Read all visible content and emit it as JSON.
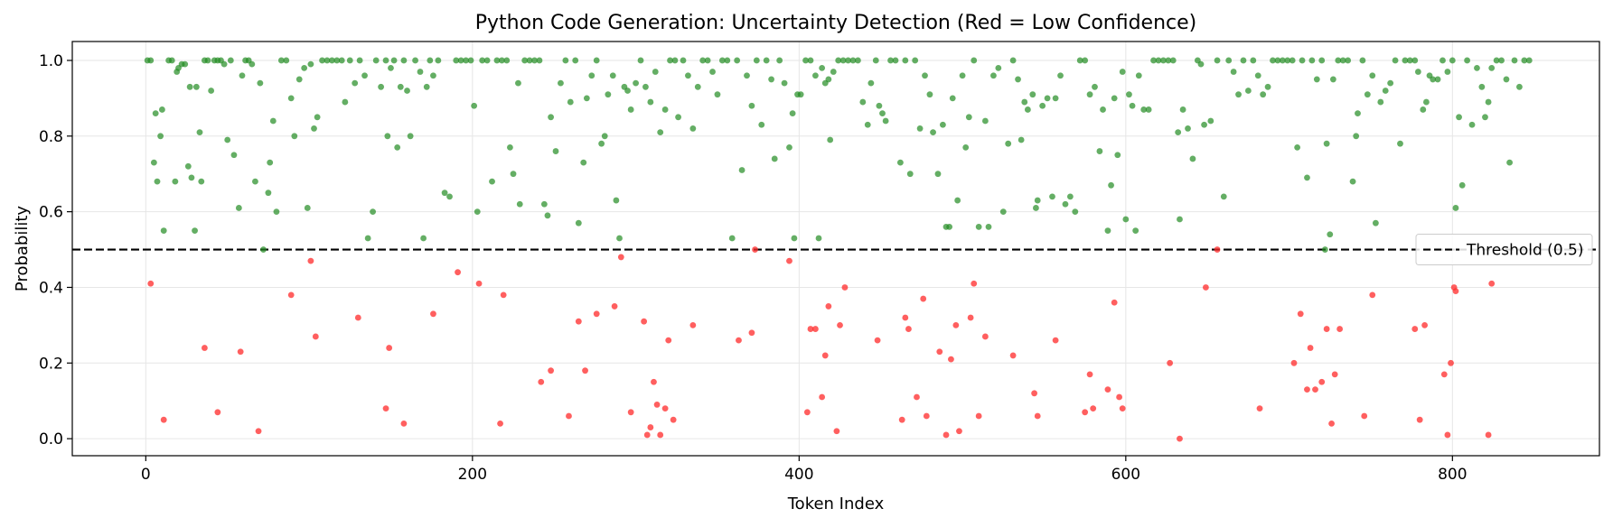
{
  "chart_data": {
    "type": "scatter",
    "title": "Python Code Generation: Uncertainty Detection (Red = Low Confidence)",
    "xlabel": "Token Index",
    "ylabel": "Probability",
    "xlim": [
      -45,
      890
    ],
    "ylim": [
      -0.045,
      1.05
    ],
    "xticks": [
      0,
      200,
      400,
      600,
      800
    ],
    "yticks": [
      0.0,
      0.2,
      0.4,
      0.6,
      0.8,
      1.0
    ],
    "xtick_labels": [
      "0",
      "200",
      "400",
      "600",
      "800"
    ],
    "ytick_labels": [
      "0.0",
      "0.2",
      "0.4",
      "0.6",
      "0.8",
      "1.0"
    ],
    "grid": true,
    "threshold": 0.5,
    "legend": {
      "placement": "right",
      "entries": [
        "Threshold (0.5)"
      ]
    },
    "colors": {
      "high": "#228B22",
      "low": "#FF2A2A",
      "threshold": "#000000"
    },
    "high_confidence_points": [
      [
        1,
        1.0
      ],
      [
        3,
        1.0
      ],
      [
        5,
        0.73
      ],
      [
        6,
        0.86
      ],
      [
        7,
        0.68
      ],
      [
        9,
        0.8
      ],
      [
        10,
        0.87
      ],
      [
        11,
        0.55
      ],
      [
        14,
        1.0
      ],
      [
        16,
        1.0
      ],
      [
        18,
        0.68
      ],
      [
        19,
        0.97
      ],
      [
        20,
        0.98
      ],
      [
        22,
        0.99
      ],
      [
        24,
        0.99
      ],
      [
        26,
        0.72
      ],
      [
        27,
        0.93
      ],
      [
        28,
        0.69
      ],
      [
        30,
        0.55
      ],
      [
        31,
        0.93
      ],
      [
        33,
        0.81
      ],
      [
        34,
        0.68
      ],
      [
        36,
        1.0
      ],
      [
        38,
        1.0
      ],
      [
        40,
        0.92
      ],
      [
        42,
        1.0
      ],
      [
        44,
        1.0
      ],
      [
        46,
        1.0
      ],
      [
        48,
        0.99
      ],
      [
        50,
        0.79
      ],
      [
        52,
        1.0
      ],
      [
        54,
        0.75
      ],
      [
        57,
        0.61
      ],
      [
        59,
        0.96
      ],
      [
        61,
        1.0
      ],
      [
        63,
        1.0
      ],
      [
        65,
        0.99
      ],
      [
        67,
        0.68
      ],
      [
        70,
        0.94
      ],
      [
        72,
        0.5
      ],
      [
        75,
        0.65
      ],
      [
        76,
        0.73
      ],
      [
        78,
        0.84
      ],
      [
        80,
        0.6
      ],
      [
        83,
        1.0
      ],
      [
        86,
        1.0
      ],
      [
        89,
        0.9
      ],
      [
        91,
        0.8
      ],
      [
        94,
        0.95
      ],
      [
        97,
        0.98
      ],
      [
        99,
        0.61
      ],
      [
        101,
        0.99
      ],
      [
        103,
        0.82
      ],
      [
        105,
        0.85
      ],
      [
        108,
        1.0
      ],
      [
        111,
        1.0
      ],
      [
        114,
        1.0
      ],
      [
        117,
        1.0
      ],
      [
        120,
        1.0
      ],
      [
        122,
        0.89
      ],
      [
        125,
        1.0
      ],
      [
        128,
        0.94
      ],
      [
        131,
        1.0
      ],
      [
        134,
        0.96
      ],
      [
        136,
        0.53
      ],
      [
        139,
        0.6
      ],
      [
        141,
        1.0
      ],
      [
        144,
        0.93
      ],
      [
        147,
        1.0
      ],
      [
        148,
        0.8
      ],
      [
        150,
        0.98
      ],
      [
        152,
        1.0
      ],
      [
        154,
        0.77
      ],
      [
        156,
        0.93
      ],
      [
        158,
        1.0
      ],
      [
        160,
        0.92
      ],
      [
        162,
        0.8
      ],
      [
        165,
        1.0
      ],
      [
        168,
        0.97
      ],
      [
        170,
        0.53
      ],
      [
        172,
        0.93
      ],
      [
        174,
        1.0
      ],
      [
        176,
        0.96
      ],
      [
        179,
        1.0
      ],
      [
        183,
        0.65
      ],
      [
        186,
        0.64
      ],
      [
        190,
        1.0
      ],
      [
        193,
        1.0
      ],
      [
        196,
        1.0
      ],
      [
        199,
        1.0
      ],
      [
        201,
        0.88
      ],
      [
        203,
        0.6
      ],
      [
        206,
        1.0
      ],
      [
        209,
        1.0
      ],
      [
        212,
        0.68
      ],
      [
        215,
        1.0
      ],
      [
        218,
        1.0
      ],
      [
        221,
        1.0
      ],
      [
        223,
        0.77
      ],
      [
        225,
        0.7
      ],
      [
        228,
        0.94
      ],
      [
        229,
        0.62
      ],
      [
        232,
        1.0
      ],
      [
        235,
        1.0
      ],
      [
        238,
        1.0
      ],
      [
        241,
        1.0
      ],
      [
        244,
        0.62
      ],
      [
        246,
        0.59
      ],
      [
        248,
        0.85
      ],
      [
        251,
        0.76
      ],
      [
        254,
        0.94
      ],
      [
        257,
        1.0
      ],
      [
        260,
        0.89
      ],
      [
        263,
        1.0
      ],
      [
        265,
        0.57
      ],
      [
        268,
        0.73
      ],
      [
        270,
        0.9
      ],
      [
        273,
        0.96
      ],
      [
        276,
        1.0
      ],
      [
        279,
        0.78
      ],
      [
        281,
        0.8
      ],
      [
        283,
        0.91
      ],
      [
        286,
        0.96
      ],
      [
        288,
        0.63
      ],
      [
        290,
        0.53
      ],
      [
        293,
        0.93
      ],
      [
        295,
        0.92
      ],
      [
        297,
        0.87
      ],
      [
        300,
        0.94
      ],
      [
        303,
        1.0
      ],
      [
        306,
        0.93
      ],
      [
        309,
        0.89
      ],
      [
        312,
        0.97
      ],
      [
        315,
        0.81
      ],
      [
        318,
        0.87
      ],
      [
        321,
        1.0
      ],
      [
        324,
        1.0
      ],
      [
        326,
        0.85
      ],
      [
        329,
        1.0
      ],
      [
        332,
        0.96
      ],
      [
        335,
        0.82
      ],
      [
        338,
        0.93
      ],
      [
        341,
        1.0
      ],
      [
        344,
        1.0
      ],
      [
        347,
        0.97
      ],
      [
        350,
        0.91
      ],
      [
        353,
        1.0
      ],
      [
        356,
        1.0
      ],
      [
        359,
        0.53
      ],
      [
        362,
        1.0
      ],
      [
        365,
        0.71
      ],
      [
        368,
        0.96
      ],
      [
        371,
        0.88
      ],
      [
        374,
        1.0
      ],
      [
        377,
        0.83
      ],
      [
        380,
        1.0
      ],
      [
        383,
        0.95
      ],
      [
        385,
        0.74
      ],
      [
        388,
        1.0
      ],
      [
        391,
        0.94
      ],
      [
        394,
        0.77
      ],
      [
        396,
        0.86
      ],
      [
        397,
        0.53
      ],
      [
        399,
        0.91
      ],
      [
        401,
        0.91
      ],
      [
        404,
        1.0
      ],
      [
        407,
        1.0
      ],
      [
        410,
        0.96
      ],
      [
        412,
        0.53
      ],
      [
        414,
        0.98
      ],
      [
        416,
        0.94
      ],
      [
        418,
        0.95
      ],
      [
        419,
        0.79
      ],
      [
        421,
        0.97
      ],
      [
        424,
        1.0
      ],
      [
        427,
        1.0
      ],
      [
        430,
        1.0
      ],
      [
        433,
        1.0
      ],
      [
        436,
        1.0
      ],
      [
        439,
        0.89
      ],
      [
        442,
        0.83
      ],
      [
        444,
        0.94
      ],
      [
        447,
        1.0
      ],
      [
        449,
        0.88
      ],
      [
        451,
        0.86
      ],
      [
        453,
        0.84
      ],
      [
        456,
        1.0
      ],
      [
        459,
        1.0
      ],
      [
        462,
        0.73
      ],
      [
        465,
        1.0
      ],
      [
        468,
        0.7
      ],
      [
        471,
        1.0
      ],
      [
        474,
        0.82
      ],
      [
        477,
        0.96
      ],
      [
        480,
        0.91
      ],
      [
        482,
        0.81
      ],
      [
        485,
        0.7
      ],
      [
        488,
        0.83
      ],
      [
        490,
        0.56
      ],
      [
        492,
        0.56
      ],
      [
        494,
        0.9
      ],
      [
        497,
        0.63
      ],
      [
        500,
        0.96
      ],
      [
        502,
        0.77
      ],
      [
        504,
        0.85
      ],
      [
        507,
        1.0
      ],
      [
        510,
        0.56
      ],
      [
        514,
        0.84
      ],
      [
        516,
        0.56
      ],
      [
        519,
        0.96
      ],
      [
        522,
        0.98
      ],
      [
        525,
        0.6
      ],
      [
        528,
        0.78
      ],
      [
        531,
        1.0
      ],
      [
        534,
        0.95
      ],
      [
        536,
        0.79
      ],
      [
        538,
        0.89
      ],
      [
        540,
        0.87
      ],
      [
        543,
        0.91
      ],
      [
        545,
        0.61
      ],
      [
        546,
        0.63
      ],
      [
        549,
        0.88
      ],
      [
        552,
        0.9
      ],
      [
        555,
        0.64
      ],
      [
        557,
        0.9
      ],
      [
        560,
        0.96
      ],
      [
        563,
        0.62
      ],
      [
        566,
        0.64
      ],
      [
        569,
        0.6
      ],
      [
        572,
        1.0
      ],
      [
        575,
        1.0
      ],
      [
        578,
        0.91
      ],
      [
        581,
        0.93
      ],
      [
        584,
        0.76
      ],
      [
        586,
        0.87
      ],
      [
        589,
        0.55
      ],
      [
        591,
        0.67
      ],
      [
        593,
        0.9
      ],
      [
        595,
        0.75
      ],
      [
        598,
        0.97
      ],
      [
        600,
        0.58
      ],
      [
        602,
        0.91
      ],
      [
        604,
        0.88
      ],
      [
        606,
        0.55
      ],
      [
        608,
        0.96
      ],
      [
        611,
        0.87
      ],
      [
        614,
        0.87
      ],
      [
        617,
        1.0
      ],
      [
        620,
        1.0
      ],
      [
        623,
        1.0
      ],
      [
        626,
        1.0
      ],
      [
        629,
        1.0
      ],
      [
        632,
        0.81
      ],
      [
        633,
        0.58
      ],
      [
        635,
        0.87
      ],
      [
        638,
        0.82
      ],
      [
        641,
        0.74
      ],
      [
        644,
        1.0
      ],
      [
        646,
        0.99
      ],
      [
        648,
        0.83
      ],
      [
        652,
        0.84
      ],
      [
        656,
        1.0
      ],
      [
        660,
        0.64
      ],
      [
        663,
        1.0
      ],
      [
        666,
        0.97
      ],
      [
        669,
        0.91
      ],
      [
        672,
        1.0
      ],
      [
        675,
        0.92
      ],
      [
        678,
        1.0
      ],
      [
        681,
        0.96
      ],
      [
        684,
        0.91
      ],
      [
        687,
        0.93
      ],
      [
        690,
        1.0
      ],
      [
        693,
        1.0
      ],
      [
        696,
        1.0
      ],
      [
        699,
        1.0
      ],
      [
        702,
        1.0
      ],
      [
        705,
        0.77
      ],
      [
        708,
        1.0
      ],
      [
        711,
        0.69
      ],
      [
        714,
        1.0
      ],
      [
        717,
        0.95
      ],
      [
        720,
        1.0
      ],
      [
        722,
        0.5
      ],
      [
        723,
        0.78
      ],
      [
        725,
        0.54
      ],
      [
        727,
        0.95
      ],
      [
        730,
        1.0
      ],
      [
        733,
        1.0
      ],
      [
        736,
        1.0
      ],
      [
        739,
        0.68
      ],
      [
        741,
        0.8
      ],
      [
        742,
        0.86
      ],
      [
        745,
        1.0
      ],
      [
        748,
        0.91
      ],
      [
        751,
        0.96
      ],
      [
        753,
        0.57
      ],
      [
        756,
        0.89
      ],
      [
        759,
        0.92
      ],
      [
        762,
        0.94
      ],
      [
        765,
        1.0
      ],
      [
        768,
        0.78
      ],
      [
        771,
        1.0
      ],
      [
        774,
        1.0
      ],
      [
        777,
        1.0
      ],
      [
        779,
        0.97
      ],
      [
        782,
        0.87
      ],
      [
        784,
        0.89
      ],
      [
        786,
        0.96
      ],
      [
        788,
        0.95
      ],
      [
        791,
        0.95
      ],
      [
        794,
        1.0
      ],
      [
        797,
        0.97
      ],
      [
        800,
        1.0
      ],
      [
        802,
        0.61
      ],
      [
        804,
        0.85
      ],
      [
        806,
        0.67
      ],
      [
        809,
        1.0
      ],
      [
        812,
        0.83
      ],
      [
        815,
        0.98
      ],
      [
        818,
        0.93
      ],
      [
        820,
        0.85
      ],
      [
        822,
        0.89
      ],
      [
        824,
        0.98
      ],
      [
        827,
        1.0
      ],
      [
        830,
        1.0
      ],
      [
        833,
        0.95
      ],
      [
        835,
        0.73
      ],
      [
        838,
        1.0
      ],
      [
        841,
        0.93
      ],
      [
        844,
        1.0
      ],
      [
        847,
        1.0
      ]
    ],
    "low_confidence_points": [
      [
        3,
        0.41
      ],
      [
        11,
        0.05
      ],
      [
        36,
        0.24
      ],
      [
        44,
        0.07
      ],
      [
        58,
        0.23
      ],
      [
        69,
        0.02
      ],
      [
        89,
        0.38
      ],
      [
        101,
        0.47
      ],
      [
        104,
        0.27
      ],
      [
        130,
        0.32
      ],
      [
        147,
        0.08
      ],
      [
        149,
        0.24
      ],
      [
        158,
        0.04
      ],
      [
        176,
        0.33
      ],
      [
        191,
        0.44
      ],
      [
        204,
        0.41
      ],
      [
        217,
        0.04
      ],
      [
        219,
        0.38
      ],
      [
        242,
        0.15
      ],
      [
        248,
        0.18
      ],
      [
        259,
        0.06
      ],
      [
        265,
        0.31
      ],
      [
        269,
        0.18
      ],
      [
        276,
        0.33
      ],
      [
        287,
        0.35
      ],
      [
        291,
        0.48
      ],
      [
        297,
        0.07
      ],
      [
        305,
        0.31
      ],
      [
        307,
        0.01
      ],
      [
        309,
        0.03
      ],
      [
        311,
        0.15
      ],
      [
        313,
        0.09
      ],
      [
        315,
        0.01
      ],
      [
        318,
        0.08
      ],
      [
        320,
        0.26
      ],
      [
        323,
        0.05
      ],
      [
        335,
        0.3
      ],
      [
        363,
        0.26
      ],
      [
        371,
        0.28
      ],
      [
        373,
        0.5
      ],
      [
        394,
        0.47
      ],
      [
        405,
        0.07
      ],
      [
        407,
        0.29
      ],
      [
        410,
        0.29
      ],
      [
        414,
        0.11
      ],
      [
        416,
        0.22
      ],
      [
        418,
        0.35
      ],
      [
        423,
        0.02
      ],
      [
        425,
        0.3
      ],
      [
        428,
        0.4
      ],
      [
        448,
        0.26
      ],
      [
        463,
        0.05
      ],
      [
        465,
        0.32
      ],
      [
        467,
        0.29
      ],
      [
        472,
        0.11
      ],
      [
        476,
        0.37
      ],
      [
        478,
        0.06
      ],
      [
        486,
        0.23
      ],
      [
        490,
        0.01
      ],
      [
        493,
        0.21
      ],
      [
        496,
        0.3
      ],
      [
        498,
        0.02
      ],
      [
        505,
        0.32
      ],
      [
        507,
        0.41
      ],
      [
        510,
        0.06
      ],
      [
        514,
        0.27
      ],
      [
        531,
        0.22
      ],
      [
        544,
        0.12
      ],
      [
        546,
        0.06
      ],
      [
        557,
        0.26
      ],
      [
        575,
        0.07
      ],
      [
        578,
        0.17
      ],
      [
        580,
        0.08
      ],
      [
        589,
        0.13
      ],
      [
        593,
        0.36
      ],
      [
        596,
        0.11
      ],
      [
        598,
        0.08
      ],
      [
        627,
        0.2
      ],
      [
        633,
        0.0
      ],
      [
        649,
        0.4
      ],
      [
        656,
        0.5
      ],
      [
        682,
        0.08
      ],
      [
        703,
        0.2
      ],
      [
        707,
        0.33
      ],
      [
        711,
        0.13
      ],
      [
        713,
        0.24
      ],
      [
        716,
        0.13
      ],
      [
        720,
        0.15
      ],
      [
        723,
        0.29
      ],
      [
        726,
        0.04
      ],
      [
        728,
        0.17
      ],
      [
        731,
        0.29
      ],
      [
        746,
        0.06
      ],
      [
        751,
        0.38
      ],
      [
        777,
        0.29
      ],
      [
        780,
        0.05
      ],
      [
        783,
        0.3
      ],
      [
        795,
        0.17
      ],
      [
        797,
        0.01
      ],
      [
        799,
        0.2
      ],
      [
        801,
        0.4
      ],
      [
        802,
        0.39
      ],
      [
        822,
        0.01
      ],
      [
        824,
        0.41
      ]
    ]
  }
}
